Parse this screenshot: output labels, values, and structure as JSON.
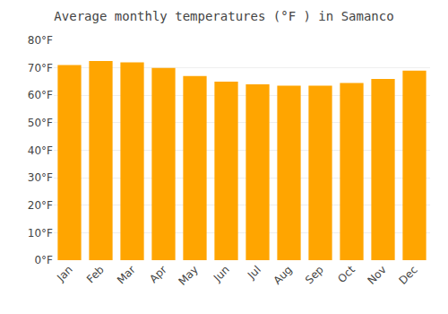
{
  "chart_data": {
    "type": "bar",
    "title": "Average monthly temperatures (°F ) in Samanco",
    "categories": [
      "Jan",
      "Feb",
      "Mar",
      "Apr",
      "May",
      "Jun",
      "Jul",
      "Aug",
      "Sep",
      "Oct",
      "Nov",
      "Dec"
    ],
    "values": [
      71,
      72.5,
      72,
      70,
      67,
      65,
      64,
      63.5,
      63.5,
      64.5,
      66,
      69
    ],
    "color": "#FFA500",
    "ylim": [
      0,
      80
    ],
    "yticks": [
      {
        "value": 0,
        "label": "0°F"
      },
      {
        "value": 10,
        "label": "10°F"
      },
      {
        "value": 20,
        "label": "20°F"
      },
      {
        "value": 30,
        "label": "30°F"
      },
      {
        "value": 40,
        "label": "40°F"
      },
      {
        "value": 50,
        "label": "50°F"
      },
      {
        "value": 60,
        "label": "60°F"
      },
      {
        "value": 70,
        "label": "70°F"
      },
      {
        "value": 80,
        "label": "80°F"
      }
    ],
    "grid": true
  }
}
